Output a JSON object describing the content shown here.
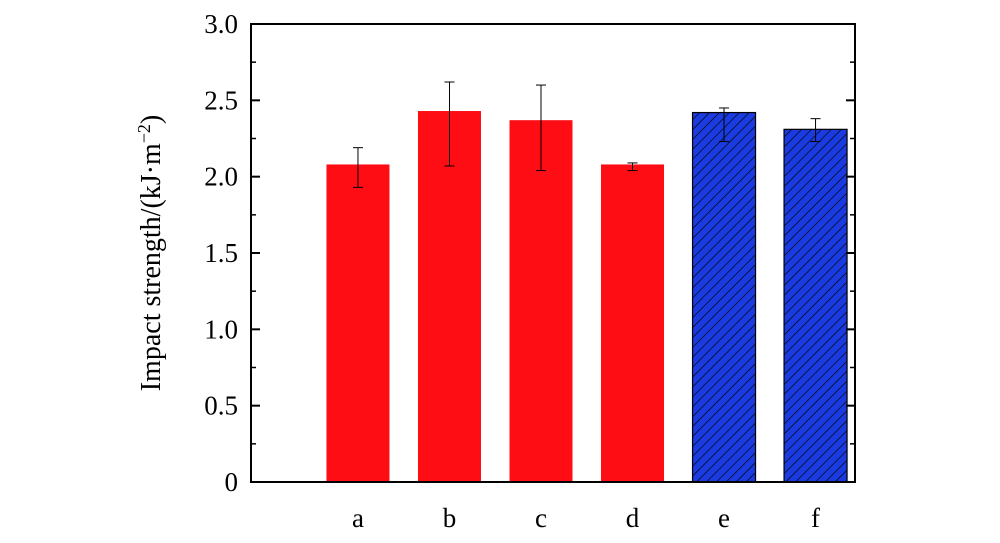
{
  "chart_data": {
    "type": "bar",
    "title": "",
    "xlabel": "",
    "ylabel": "Impact strength/(kJ·m",
    "ylabel_exp": "−2",
    "ylabel_close": ")",
    "ylim": [
      0,
      3.0
    ],
    "yticks": [
      0,
      0.5,
      1.0,
      1.5,
      2.0,
      2.5,
      3.0
    ],
    "ytick_labels": [
      "0",
      "0.5",
      "1.0",
      "1.5",
      "2.0",
      "2.5",
      "3.0"
    ],
    "categories": [
      "a",
      "b",
      "c",
      "d",
      "e",
      "f"
    ],
    "values": [
      2.08,
      2.43,
      2.37,
      2.08,
      2.42,
      2.31
    ],
    "errors": [
      [
        1.93,
        2.19
      ],
      [
        2.07,
        2.62
      ],
      [
        2.04,
        2.6
      ],
      [
        2.04,
        2.09
      ],
      [
        2.23,
        2.45
      ],
      [
        2.23,
        2.38
      ]
    ],
    "bar_styles": [
      "solid",
      "solid",
      "solid",
      "solid",
      "hatched",
      "hatched"
    ],
    "grid": false,
    "legend": "none"
  },
  "colors": {
    "solid_fill": "#ff0d14",
    "hatched_fill": "#1a3be0",
    "axis": "#000000"
  }
}
